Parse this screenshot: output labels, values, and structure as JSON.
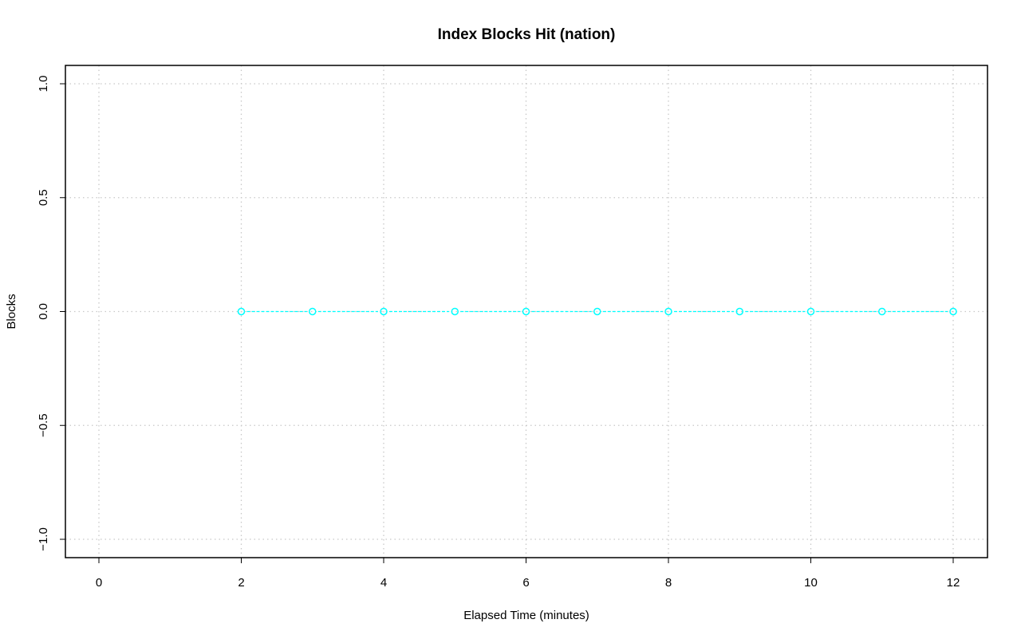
{
  "chart_data": {
    "type": "line",
    "title": "Index Blocks Hit (nation)",
    "xlabel": "Elapsed Time (minutes)",
    "ylabel": "Blocks",
    "xlim": [
      0,
      12
    ],
    "ylim": [
      -1,
      1
    ],
    "x_ticks": [
      "0",
      "2",
      "4",
      "6",
      "8",
      "10",
      "12"
    ],
    "y_ticks": [
      "-1.0",
      "-0.5",
      "0.0",
      "0.5",
      "1.0"
    ],
    "grid": true,
    "series": [
      {
        "color": "#00ffff",
        "marker": "open-circle",
        "line_style": "dashed",
        "x": [
          2,
          3,
          4,
          5,
          6,
          7,
          8,
          9,
          10,
          11,
          12
        ],
        "y": [
          0,
          0,
          0,
          0,
          0,
          0,
          0,
          0,
          0,
          0,
          0
        ]
      }
    ]
  }
}
